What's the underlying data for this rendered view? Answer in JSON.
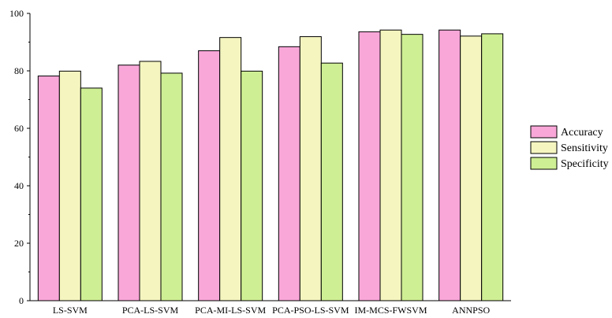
{
  "chart_data": {
    "type": "bar",
    "title": "",
    "xlabel": "",
    "ylabel": "",
    "ylim": [
      0,
      100
    ],
    "yticks": [
      0,
      20,
      40,
      60,
      80,
      100
    ],
    "grid": false,
    "legend_position": "right",
    "categories": [
      "LS-SVM",
      "PCA-LS-SVM",
      "PCA-MI-LS-SVM",
      "PCA-PSO-LS-SVM",
      "IM-MCS-FWSVM",
      "ANNPSO"
    ],
    "series": [
      {
        "name": "Accuracy",
        "color": "#f9a7d9",
        "values": [
          78.2,
          82.0,
          87.0,
          88.4,
          93.6,
          94.2
        ]
      },
      {
        "name": "Sensitivity",
        "color": "#f5f5c0",
        "values": [
          79.9,
          83.3,
          91.6,
          91.9,
          94.2,
          92.1
        ]
      },
      {
        "name": "Specificity",
        "color": "#cfef94",
        "values": [
          74.0,
          79.2,
          79.9,
          82.7,
          92.7,
          92.9
        ]
      }
    ]
  }
}
